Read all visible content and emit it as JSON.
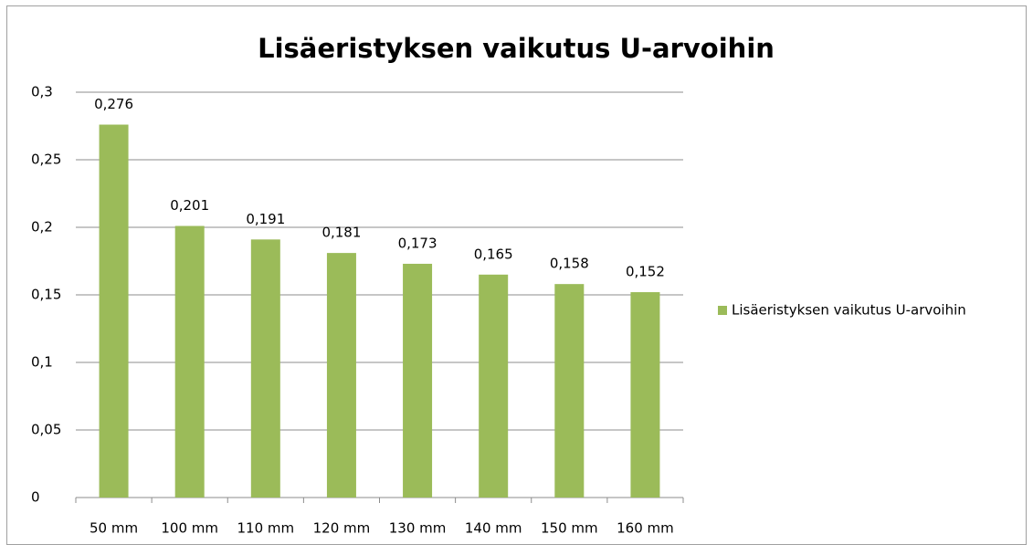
{
  "chart_data": {
    "type": "bar",
    "title": "Lisäeristyksen vaikutus U-arvoihin",
    "categories": [
      "50 mm",
      "100 mm",
      "110 mm",
      "120 mm",
      "130 mm",
      "140 mm",
      "150 mm",
      "160 mm"
    ],
    "series": [
      {
        "name": "Lisäeristyksen vaikutus U-arvoihin",
        "color": "#9bbb59",
        "values": [
          0.276,
          0.201,
          0.191,
          0.181,
          0.173,
          0.165,
          0.158,
          0.152
        ],
        "value_labels": [
          "0,276",
          "0,201",
          "0,191",
          "0,181",
          "0,173",
          "0,165",
          "0,158",
          "0,152"
        ]
      }
    ],
    "ylim": [
      0,
      0.3
    ],
    "yticks": [
      0,
      {
        "value": 0.05,
        "label": "0,05"
      },
      {
        "value": 0.1,
        "label": "0,1"
      },
      {
        "value": 0.15,
        "label": "0,15"
      },
      {
        "value": 0.2,
        "label": "0,2"
      },
      {
        "value": 0.25,
        "label": "0,25"
      },
      {
        "value": 0.3,
        "label": "0,3"
      }
    ],
    "grid": true,
    "legend": "right"
  }
}
